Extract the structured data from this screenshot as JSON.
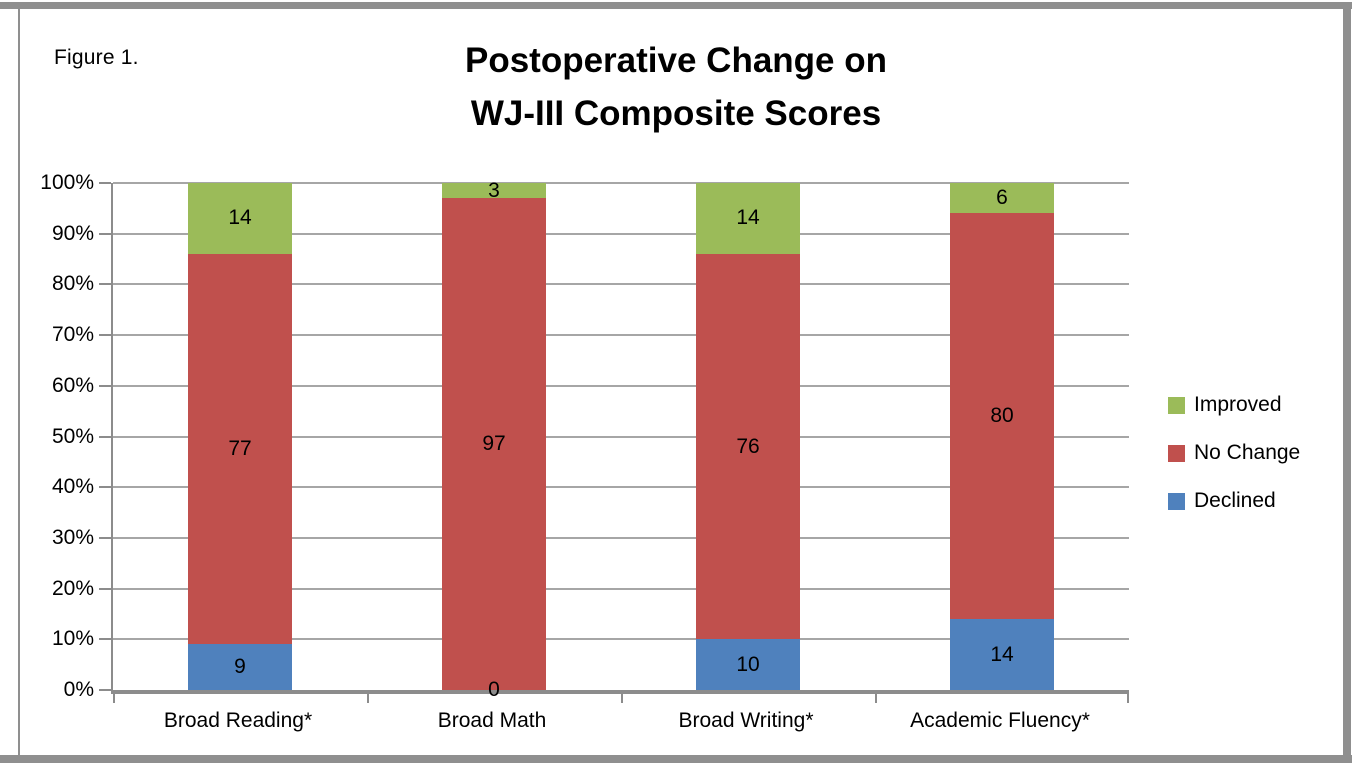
{
  "figure_label": "Figure 1.",
  "title": {
    "line1": "Postoperative Change on",
    "line2": "WJ-III Composite Scores"
  },
  "colors": {
    "improved": "#9BBB59",
    "no_change": "#C0504D",
    "declined": "#4F81BD",
    "gridline": "#A6A6A6",
    "axis": "#8C8C8C",
    "frame": "#8F8F8F",
    "label_text": "#000000"
  },
  "chart_data": {
    "type": "bar",
    "subtype": "stacked-100-percent-column",
    "title": "Postoperative Change on WJ-III Composite Scores",
    "categories": [
      "Broad Reading*",
      "Broad Math",
      "Broad Writing*",
      "Academic Fluency*"
    ],
    "series": [
      {
        "name": "Declined",
        "color": "#4F81BD",
        "values": [
          9,
          0,
          10,
          14
        ]
      },
      {
        "name": "No Change",
        "color": "#C0504D",
        "values": [
          77,
          97,
          76,
          80
        ]
      },
      {
        "name": "Improved",
        "color": "#9BBB59",
        "values": [
          14,
          3,
          14,
          6
        ]
      }
    ],
    "data_labels": true,
    "grid": true,
    "y_axis": {
      "min": 0,
      "max": 100,
      "step": 10,
      "tick_labels": [
        "0%",
        "10%",
        "20%",
        "30%",
        "40%",
        "50%",
        "60%",
        "70%",
        "80%",
        "90%",
        "100%"
      ]
    },
    "legend": {
      "position": "right",
      "order": [
        "Improved",
        "No Change",
        "Declined"
      ]
    }
  }
}
